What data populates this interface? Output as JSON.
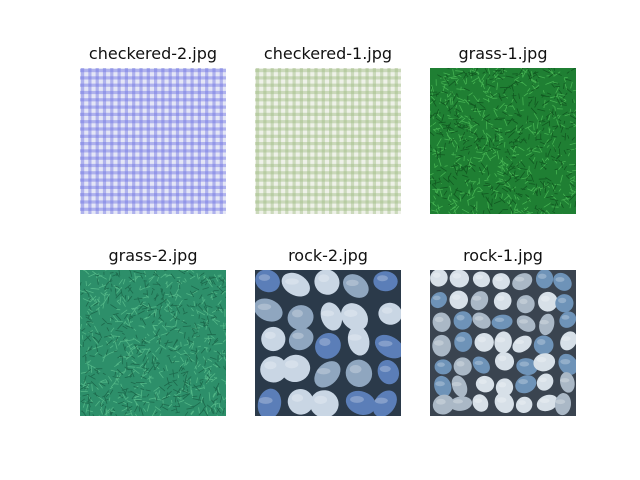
{
  "figure": {
    "images": [
      {
        "title": "checkered-2.jpg",
        "texture": "checkered",
        "colors": {
          "base": "#e4e6f6",
          "stripe": "#6f74e2"
        }
      },
      {
        "title": "checkered-1.jpg",
        "texture": "checkered",
        "colors": {
          "base": "#eef1e8",
          "stripe": "#9fbd84"
        }
      },
      {
        "title": "grass-1.jpg",
        "texture": "grass",
        "colors": {
          "base": "#1f7f33",
          "light": "#4fbf5a",
          "dark": "#0c4a1a"
        }
      },
      {
        "title": "grass-2.jpg",
        "texture": "grass",
        "colors": {
          "base": "#2d8f6a",
          "light": "#5cc08f",
          "dark": "#165a40"
        }
      },
      {
        "title": "rock-2.jpg",
        "texture": "stones-tight",
        "colors": {
          "base": "#8fa6bf",
          "light": "#c9d6e4",
          "dark": "#2b3a4a",
          "accent": "#5b7eb8"
        }
      },
      {
        "title": "rock-1.jpg",
        "texture": "pebbles",
        "colors": {
          "base": "#aab8c6",
          "light": "#d7e0e8",
          "dark": "#3a4450",
          "accent": "#6e93b8"
        }
      }
    ]
  }
}
